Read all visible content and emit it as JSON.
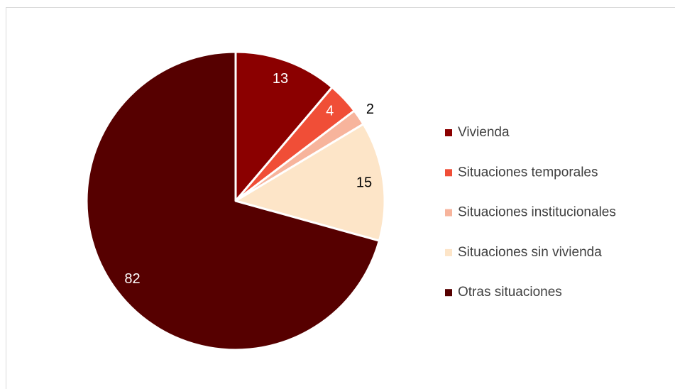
{
  "chart_data": {
    "type": "pie",
    "categories": [
      "Vivienda",
      "Situaciones temporales",
      "Situaciones institucionales",
      "Situaciones sin vivienda",
      "Otras situaciones"
    ],
    "values": [
      13,
      4,
      2,
      15,
      82
    ],
    "colors": [
      "#8b0000",
      "#f04e37",
      "#f7b49c",
      "#fde5c8",
      "#560000"
    ],
    "legend": "right"
  }
}
